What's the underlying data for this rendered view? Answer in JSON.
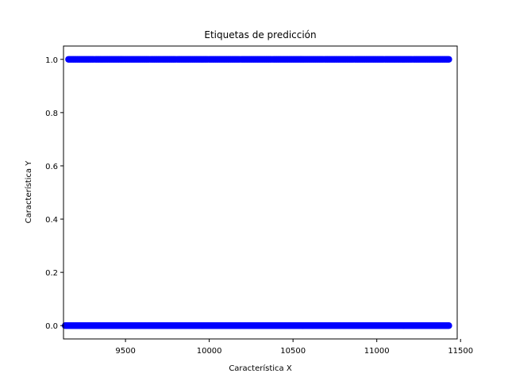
{
  "chart_data": {
    "type": "scatter",
    "title": "Etiquetas de predicción",
    "xlabel": "Característica X",
    "ylabel": "Característica Y",
    "xlim": [
      9130,
      11480
    ],
    "ylim": [
      -0.05,
      1.05
    ],
    "xticks": [
      9500,
      10000,
      10500,
      11000,
      11500
    ],
    "yticks": [
      0.0,
      0.2,
      0.4,
      0.6,
      0.8,
      1.0
    ],
    "xtick_labels": [
      "9500",
      "10000",
      "10500",
      "11000",
      "11500"
    ],
    "ytick_labels": [
      "0.0",
      "0.2",
      "0.4",
      "0.6",
      "0.8",
      "1.0"
    ],
    "marker_color": "#0000ff",
    "grid": false,
    "series": [
      {
        "x_range": [
          9140,
          11430
        ],
        "y": 0,
        "point_count": 400
      },
      {
        "x_range_segments": [
          [
            9160,
            9310
          ],
          [
            9320,
            9475
          ],
          [
            9480,
            9640
          ],
          [
            9650,
            9800
          ],
          [
            9810,
            9990
          ],
          [
            10000,
            10180
          ],
          [
            10190,
            10370
          ],
          [
            10380,
            10545
          ],
          [
            10550,
            10680
          ],
          [
            10690,
            10860
          ],
          [
            10870,
            11040
          ],
          [
            11050,
            11210
          ],
          [
            11220,
            11430
          ]
        ],
        "y": 1,
        "point_count": 300
      }
    ]
  }
}
